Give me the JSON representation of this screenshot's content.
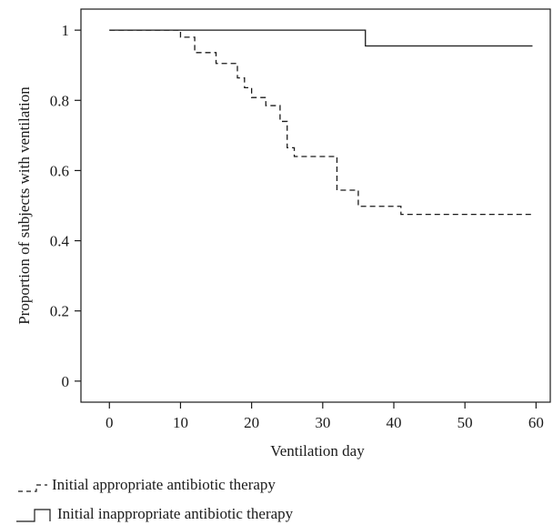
{
  "chart_data": {
    "type": "line",
    "subtype": "kaplan-meier step",
    "xlabel": "Ventilation day",
    "ylabel": "Proportion of subjects with ventilation",
    "xlim": [
      -4,
      62
    ],
    "ylim": [
      -0.06,
      1.06
    ],
    "xticks": [
      0,
      10,
      20,
      30,
      40,
      50,
      60
    ],
    "yticks": [
      0,
      0.2,
      0.4,
      0.6,
      0.8,
      1
    ],
    "xtick_labels": [
      "0",
      "10",
      "20",
      "30",
      "40",
      "50",
      "60"
    ],
    "ytick_labels": [
      "0",
      "0.2",
      "0.4",
      "0.6",
      "0.8",
      "1"
    ],
    "grid": false,
    "legend_position": "bottom-left, below plot",
    "series": [
      {
        "name": "Initial appropriate antibiotic therapy",
        "line_style": "dashed",
        "color": "#1a1a1a",
        "x": [
          0,
          10,
          11,
          12,
          15,
          18,
          19,
          20,
          22,
          24,
          25,
          26,
          32,
          35,
          41,
          59.5
        ],
        "y": [
          1.0,
          0.98,
          0.98,
          0.936,
          0.905,
          0.864,
          0.836,
          0.808,
          0.785,
          0.74,
          0.665,
          0.64,
          0.544,
          0.498,
          0.475,
          0.475
        ]
      },
      {
        "name": "Initial inappropriate antibiotic therapy",
        "line_style": "solid",
        "color": "#1a1a1a",
        "x": [
          0,
          36,
          59.5
        ],
        "y": [
          1.0,
          0.955,
          0.955
        ]
      }
    ]
  }
}
